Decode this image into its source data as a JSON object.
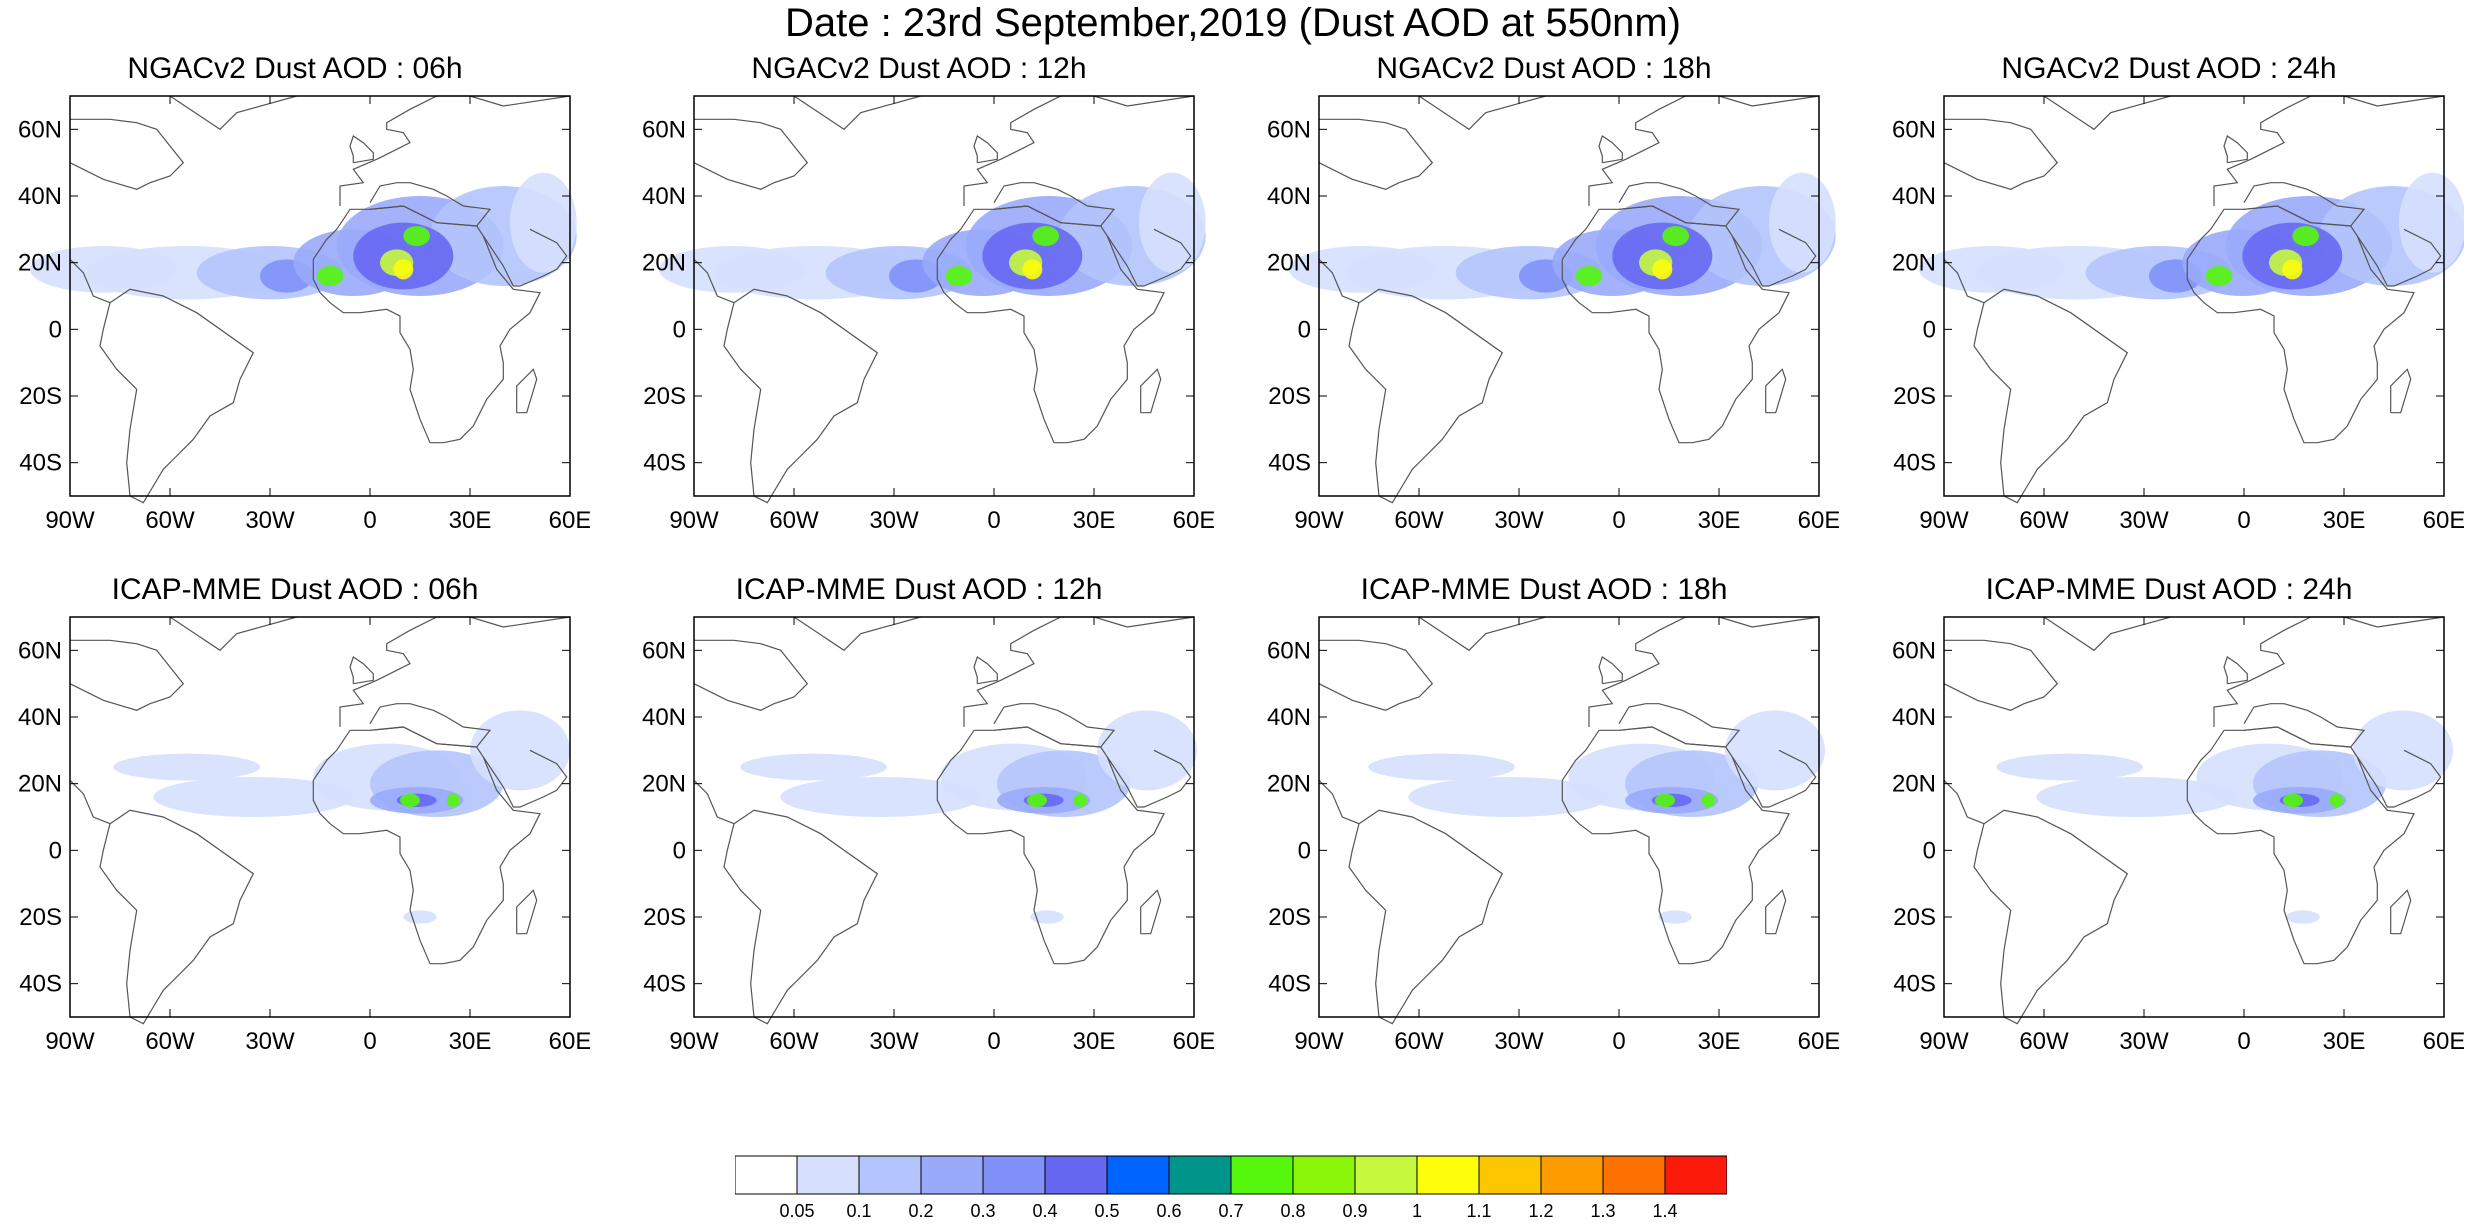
{
  "title": "Date : 23rd September,2019 (Dust AOD at 550nm)",
  "map_extent": {
    "lon": [
      -90,
      60
    ],
    "lat": [
      -50,
      70
    ]
  },
  "lon_ticks": [
    {
      "value": -90,
      "label": "90W"
    },
    {
      "value": -60,
      "label": "60W"
    },
    {
      "value": -30,
      "label": "30W"
    },
    {
      "value": 0,
      "label": "0"
    },
    {
      "value": 30,
      "label": "30E"
    },
    {
      "value": 60,
      "label": "60E"
    }
  ],
  "lat_ticks": [
    {
      "value": 60,
      "label": "60N"
    },
    {
      "value": 40,
      "label": "40N"
    },
    {
      "value": 20,
      "label": "20N"
    },
    {
      "value": 0,
      "label": "0"
    },
    {
      "value": -20,
      "label": "20S"
    },
    {
      "value": -40,
      "label": "40S"
    }
  ],
  "panels": [
    {
      "title": "NGACv2 Dust AOD : 06h",
      "model": "NGACv2",
      "hour": "06h"
    },
    {
      "title": "NGACv2 Dust AOD : 12h",
      "model": "NGACv2",
      "hour": "12h"
    },
    {
      "title": "NGACv2 Dust AOD : 18h",
      "model": "NGACv2",
      "hour": "18h"
    },
    {
      "title": "NGACv2 Dust AOD : 24h",
      "model": "NGACv2",
      "hour": "24h"
    },
    {
      "title": "ICAP-MME Dust AOD : 06h",
      "model": "ICAP-MME",
      "hour": "06h"
    },
    {
      "title": "ICAP-MME Dust AOD : 12h",
      "model": "ICAP-MME",
      "hour": "12h"
    },
    {
      "title": "ICAP-MME Dust AOD : 18h",
      "model": "ICAP-MME",
      "hour": "18h"
    },
    {
      "title": "ICAP-MME Dust AOD : 24h",
      "model": "ICAP-MME",
      "hour": "24h"
    }
  ],
  "colorbar": {
    "labels": [
      "0.05",
      "0.1",
      "0.2",
      "0.3",
      "0.4",
      "0.5",
      "0.6",
      "0.7",
      "0.8",
      "0.9",
      "1",
      "1.1",
      "1.2",
      "1.3",
      "1.4"
    ],
    "colors": [
      "#ffffff",
      "#d6e0fe",
      "#b4c4fc",
      "#99aafb",
      "#8191f9",
      "#6768f2",
      "#0065ff",
      "#00958a",
      "#55f70c",
      "#8bf60a",
      "#c6f83e",
      "#fcfe0a",
      "#fcc700",
      "#fc9c00",
      "#fc7100",
      "#fc1b0a"
    ]
  },
  "colors": {
    "land_outline": "#555555",
    "frame": "#000000"
  }
}
